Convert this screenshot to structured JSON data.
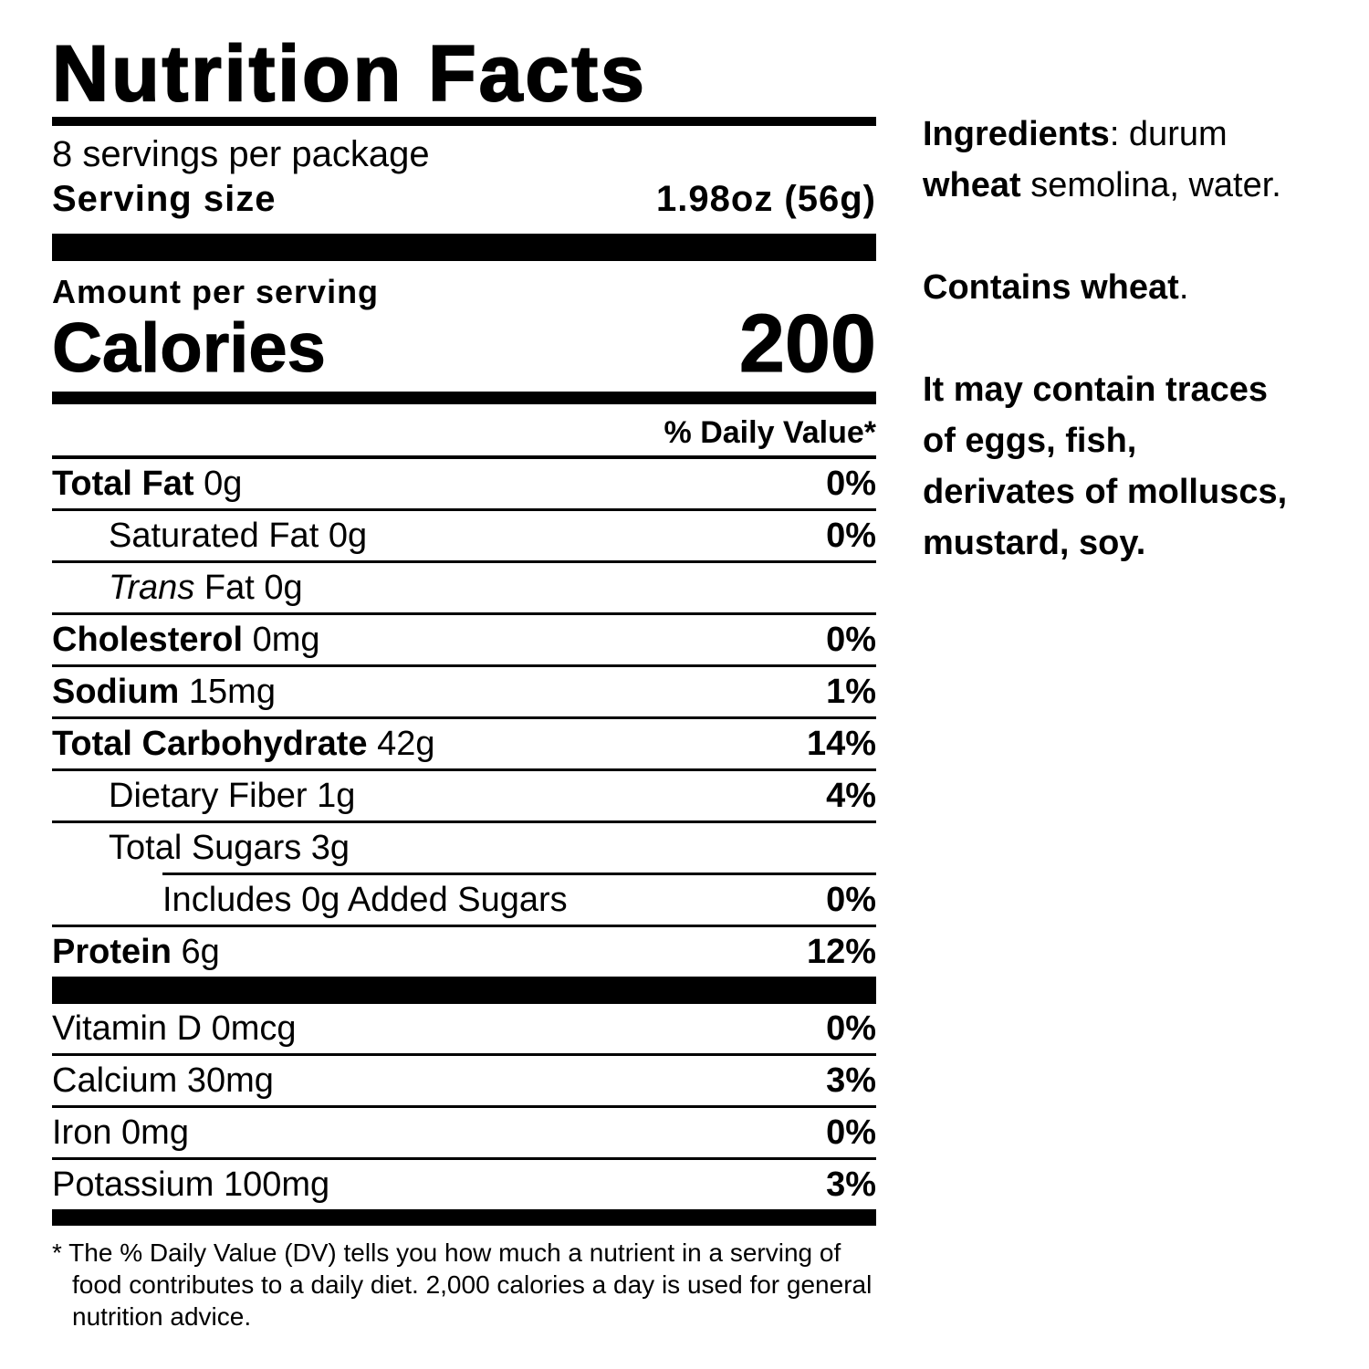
{
  "label": {
    "title": "Nutrition Facts",
    "servings": "8 servings per package",
    "serving_size_label": "Serving size",
    "serving_size": "1.98oz (56g)",
    "amount_per_serving": "Amount per serving",
    "calories_label": "Calories",
    "calories": 200,
    "dv_header": "% Daily Value*",
    "rows": [
      {
        "name": "Total Fat",
        "amount": "0g",
        "dv": "0%"
      },
      {
        "name": "Saturated Fat",
        "amount": "0g",
        "dv": "0%"
      },
      {
        "name_italic": "Trans",
        "name": "Fat",
        "amount": "0g"
      },
      {
        "name": "Cholesterol",
        "amount": "0mg",
        "dv": "0%"
      },
      {
        "name": "Sodium",
        "amount": "15mg",
        "dv": "1%"
      },
      {
        "name": "Total Carbohydrate",
        "amount": "42g",
        "dv": "14%"
      },
      {
        "name": "Dietary Fiber",
        "amount": "1g",
        "dv": "4%"
      },
      {
        "name": "Total Sugars",
        "amount": "3g"
      },
      {
        "name": "Includes 0g Added Sugars",
        "dv": "0%"
      },
      {
        "name": "Protein",
        "amount": "6g",
        "dv": "12%"
      }
    ],
    "vitamins": [
      {
        "name": "Vitamin D",
        "amount": "0mcg",
        "dv": "0%"
      },
      {
        "name": "Calcium",
        "amount": "30mg",
        "dv": "3%"
      },
      {
        "name": "Iron",
        "amount": "0mg",
        "dv": "0%"
      },
      {
        "name": "Potassium",
        "amount": "100mg",
        "dv": "3%"
      }
    ],
    "footnote": "* The % Daily Value (DV) tells you how much a nutrient in a serving of food contributes to a daily diet. 2,000 calories a day is used for general nutrition advice."
  },
  "info": {
    "ingredients_label": "Ingredients",
    "ingredients_text1": ": durum ",
    "ingredients_allergen": "wheat",
    "ingredients_text2": " semolina, water.",
    "contains": "Contains wheat",
    "contains_end": ".",
    "traces": "It may contain traces of eggs, fish, derivates of molluscs, mustard, soy."
  }
}
